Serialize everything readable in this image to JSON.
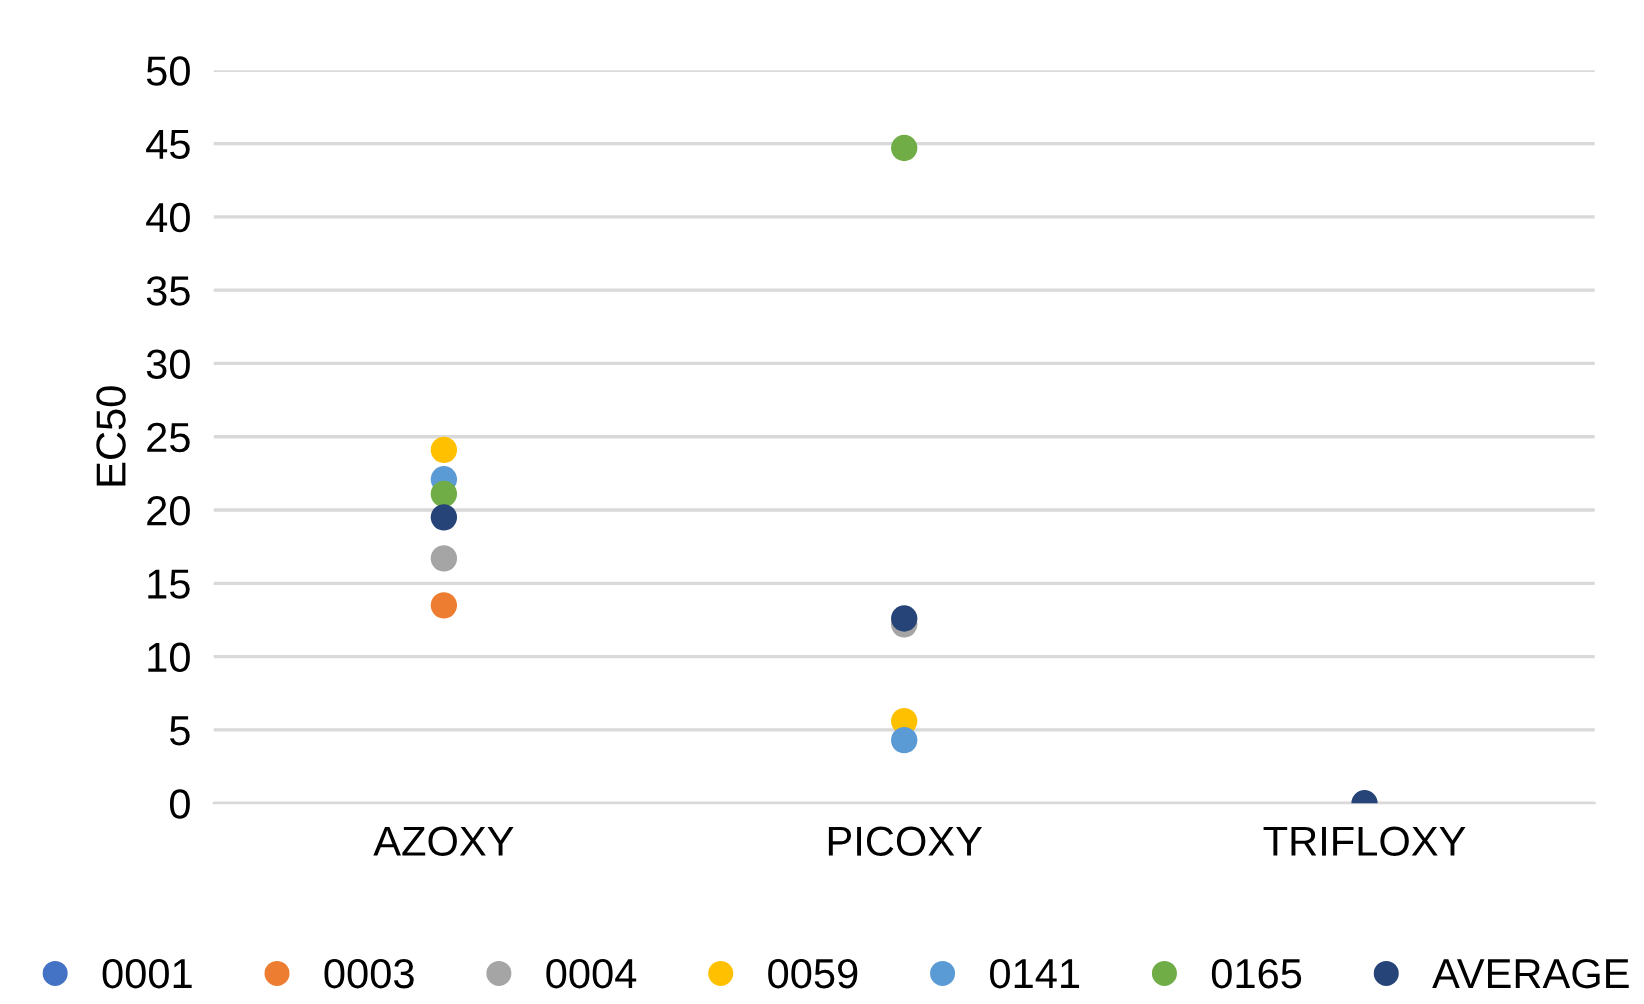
{
  "chart_data": {
    "type": "scatter",
    "ylabel": "EC50",
    "categories": [
      "AZOXY",
      "PICOXY",
      "TRIFLOXY"
    ],
    "ylim": [
      0,
      50
    ],
    "yticks": [
      0,
      5,
      10,
      15,
      20,
      25,
      30,
      35,
      40,
      45,
      50
    ],
    "grid": "y",
    "legend": "bottom",
    "marker": "circle",
    "series": [
      {
        "name": "0001",
        "color": "#4472c4",
        "values": [
          null,
          null,
          null
        ]
      },
      {
        "name": "0003",
        "color": "#ed7d31",
        "values": [
          13.5,
          null,
          null
        ]
      },
      {
        "name": "0004",
        "color": "#a5a5a5",
        "values": [
          16.7,
          12.2,
          null
        ]
      },
      {
        "name": "0059",
        "color": "#ffc000",
        "values": [
          24.1,
          5.6,
          null
        ]
      },
      {
        "name": "0141",
        "color": "#5b9bd5",
        "values": [
          22.1,
          4.3,
          null
        ]
      },
      {
        "name": "0165",
        "color": "#70ad47",
        "values": [
          21.1,
          44.7,
          null
        ]
      },
      {
        "name": "AVERAGE",
        "color": "#264478",
        "values": [
          19.5,
          12.6,
          0
        ]
      }
    ]
  }
}
